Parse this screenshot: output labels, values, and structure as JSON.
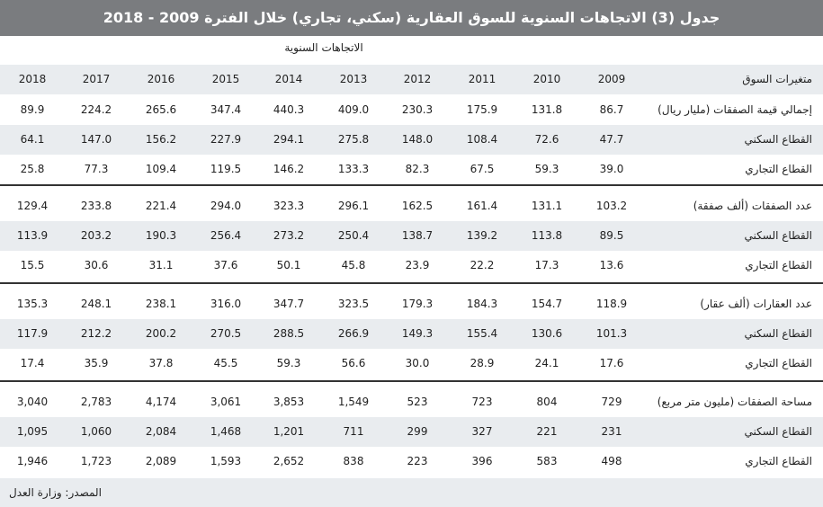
{
  "title": "جدول (3) الاتجاهات السنوية للسوق العقارية (سكني، تجاري) خلال الفترة 2009 - 2018",
  "trend_label": "الاتجاهات السنوية",
  "header_label": "متغيرات السوق",
  "years": [
    "2018",
    "2017",
    "2016",
    "2015",
    "2014",
    "2013",
    "2012",
    "2011",
    "2010",
    "2009"
  ],
  "rows": [
    {
      "label": "إجمالي قيمة الصفقات (مليار ريال)",
      "values": [
        "89.9",
        "224.2",
        "265.6",
        "347.4",
        "440.3",
        "409.0",
        "230.3",
        "175.9",
        "131.8",
        "86.7"
      ]
    },
    {
      "label": "القطاع السكني",
      "values": [
        "64.1",
        "147.0",
        "156.2",
        "227.9",
        "294.1",
        "275.8",
        "148.0",
        "108.4",
        "72.6",
        "47.7"
      ]
    },
    {
      "label": "القطاع التجاري",
      "values": [
        "25.8",
        "77.3",
        "109.4",
        "119.5",
        "146.2",
        "133.3",
        "82.3",
        "67.5",
        "59.3",
        "39.0"
      ]
    },
    {
      "label": "عدد الصفقات (ألف صفقة)",
      "values": [
        "129.4",
        "233.8",
        "221.4",
        "294.0",
        "323.3",
        "296.1",
        "162.5",
        "161.4",
        "131.1",
        "103.2"
      ]
    },
    {
      "label": "القطاع السكني",
      "values": [
        "113.9",
        "203.2",
        "190.3",
        "256.4",
        "273.2",
        "250.4",
        "138.7",
        "139.2",
        "113.8",
        "89.5"
      ]
    },
    {
      "label": "القطاع التجاري",
      "values": [
        "15.5",
        "30.6",
        "31.1",
        "37.6",
        "50.1",
        "45.8",
        "23.9",
        "22.2",
        "17.3",
        "13.6"
      ]
    },
    {
      "label": "عدد العقارات (ألف عقار)",
      "values": [
        "135.3",
        "248.1",
        "238.1",
        "316.0",
        "347.7",
        "323.5",
        "179.3",
        "184.3",
        "154.7",
        "118.9"
      ]
    },
    {
      "label": "القطاع السكني",
      "values": [
        "117.9",
        "212.2",
        "200.2",
        "270.5",
        "288.5",
        "266.9",
        "149.3",
        "155.4",
        "130.6",
        "101.3"
      ]
    },
    {
      "label": "القطاع التجاري",
      "values": [
        "17.4",
        "35.9",
        "37.8",
        "45.5",
        "59.3",
        "56.6",
        "30.0",
        "28.9",
        "24.1",
        "17.6"
      ]
    },
    {
      "label": "مساحة الصفقات (مليون متر مربع)",
      "values": [
        "3,040",
        "2,783",
        "4,174",
        "3,061",
        "3,853",
        "1,549",
        "523",
        "723",
        "804",
        "729"
      ]
    },
    {
      "label": "القطاع السكني",
      "values": [
        "1,095",
        "1,060",
        "2,084",
        "1,468",
        "1,201",
        "711",
        "299",
        "327",
        "221",
        "231"
      ]
    },
    {
      "label": "القطاع التجاري",
      "values": [
        "1,946",
        "1,723",
        "2,089",
        "1,593",
        "2,652",
        "838",
        "223",
        "396",
        "583",
        "498"
      ]
    }
  ],
  "source": "المصدر: وزارة العدل"
}
